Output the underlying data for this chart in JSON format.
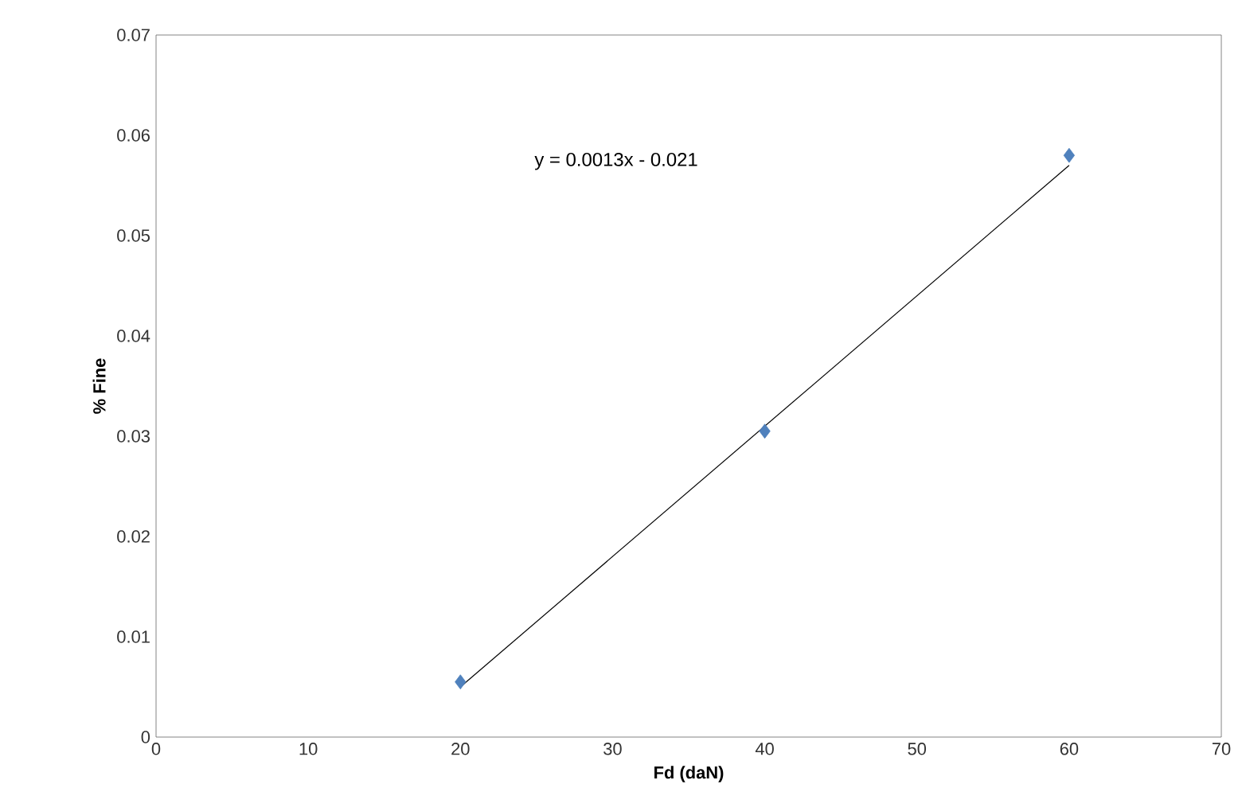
{
  "chart_data": {
    "type": "scatter",
    "xlabel": "Fd (daN)",
    "ylabel": "% Fine",
    "xlim": [
      0,
      70
    ],
    "xticks": [
      0,
      10,
      20,
      30,
      40,
      50,
      60,
      70
    ],
    "ylim": [
      0,
      0.07
    ],
    "yticks": [
      0,
      0.01,
      0.02,
      0.03,
      0.04,
      0.05,
      0.06,
      0.07
    ],
    "series": [
      {
        "x": [
          20,
          40,
          60
        ],
        "values": [
          0.0055,
          0.0305,
          0.058
        ],
        "color": "#4f81bd",
        "marker": "diamond"
      },
      {
        "type": "line",
        "x": [
          20,
          60
        ],
        "values": [
          0.005,
          0.057
        ],
        "color": "#000000",
        "marker": "none"
      }
    ],
    "annotations": [
      "y = 0.0013x - 0.021"
    ],
    "grid": false
  }
}
